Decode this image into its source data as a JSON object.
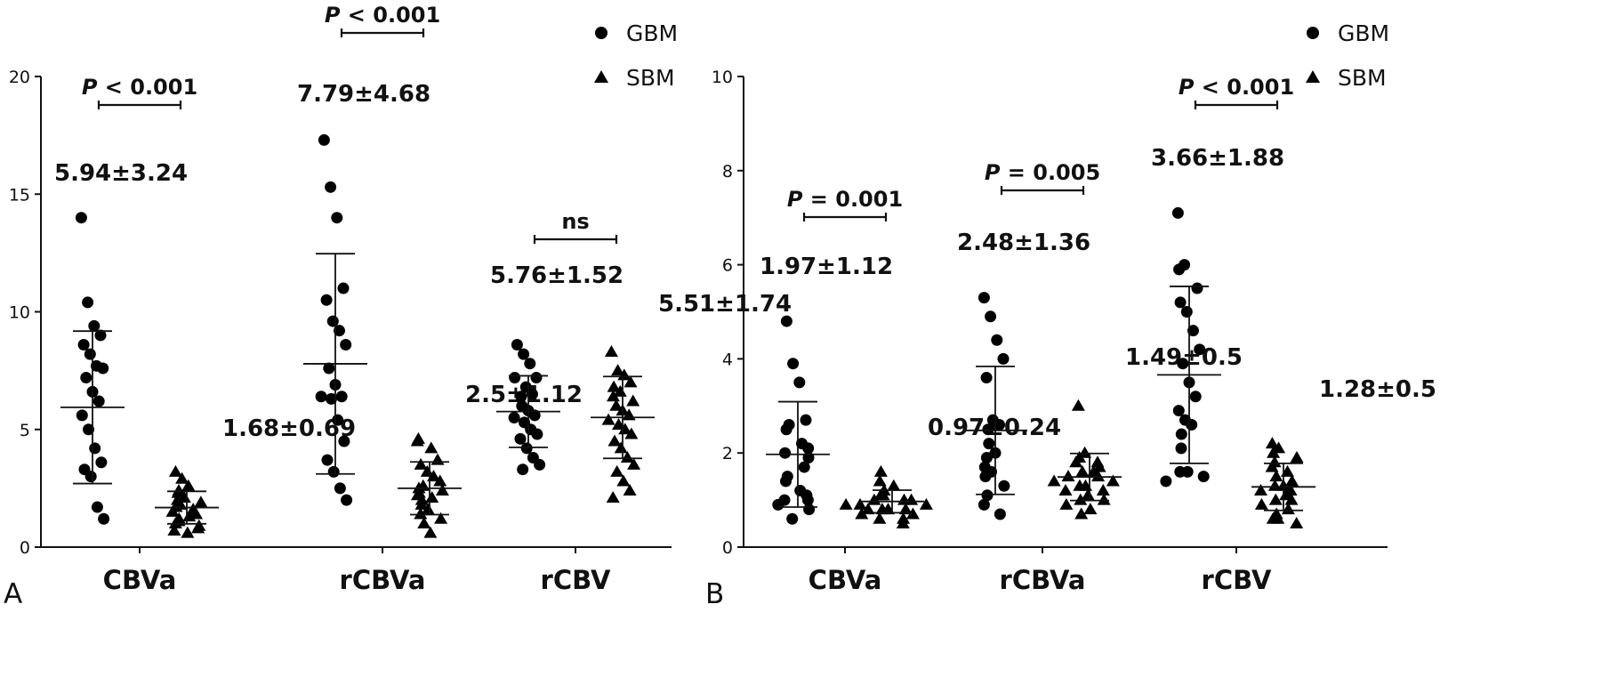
{
  "legend": [
    {
      "label": "GBM",
      "marker": "circle"
    },
    {
      "label": "SBM",
      "marker": "triangle"
    }
  ],
  "chart_data": [
    {
      "type": "scatter",
      "panel_label": "A",
      "categories": [
        "CBVa",
        "rCBVa",
        "rCBV"
      ],
      "ylim": [
        0,
        20
      ],
      "yticks": [
        0,
        5,
        10,
        15,
        20
      ],
      "legend_position": "top-right",
      "groups": [
        {
          "category": "CBVa",
          "bracket_label": "P < 0.001",
          "series": [
            {
              "name": "GBM",
              "label": "5.94±3.24",
              "mean": 5.94,
              "sd": 3.24,
              "points": [
                14.0,
                10.4,
                9.4,
                9.0,
                8.6,
                8.2,
                7.7,
                7.6,
                7.2,
                6.6,
                6.2,
                5.6,
                5.0,
                4.2,
                3.6,
                3.3,
                3.0,
                1.7,
                1.2
              ]
            },
            {
              "name": "SBM",
              "label": "1.68±0.69",
              "mean": 1.68,
              "sd": 0.69,
              "points": [
                3.2,
                2.9,
                2.6,
                2.4,
                2.3,
                2.1,
                2.0,
                1.9,
                1.8,
                1.7,
                1.6,
                1.5,
                1.4,
                1.3,
                1.2,
                1.1,
                1.0,
                0.9,
                0.8,
                0.7,
                0.6
              ]
            }
          ]
        },
        {
          "category": "rCBVa",
          "bracket_label": "P < 0.001",
          "series": [
            {
              "name": "GBM",
              "label": "7.79±4.68",
              "mean": 7.79,
              "sd": 4.68,
              "points": [
                17.3,
                15.3,
                14.0,
                11.0,
                10.5,
                9.6,
                9.2,
                8.6,
                7.6,
                6.9,
                6.4,
                6.4,
                6.3,
                5.4,
                4.5,
                3.7,
                3.2,
                2.5,
                2.0
              ]
            },
            {
              "name": "SBM",
              "label": "2.5±1.12",
              "mean": 2.5,
              "sd": 1.12,
              "points": [
                4.6,
                4.5,
                4.2,
                3.7,
                3.5,
                3.2,
                3.0,
                2.8,
                2.6,
                2.5,
                2.4,
                2.3,
                2.2,
                2.1,
                2.0,
                1.8,
                1.6,
                1.4,
                1.2,
                1.0,
                0.6
              ]
            }
          ]
        },
        {
          "category": "rCBV",
          "bracket_label": "ns",
          "series": [
            {
              "name": "GBM",
              "label": "5.76±1.52",
              "mean": 5.76,
              "sd": 1.52,
              "points": [
                8.6,
                8.2,
                7.8,
                7.2,
                7.2,
                6.8,
                6.5,
                6.4,
                6.0,
                5.8,
                5.6,
                5.5,
                5.3,
                5.0,
                4.8,
                4.6,
                4.2,
                3.8,
                3.5,
                3.3
              ]
            },
            {
              "name": "SBM",
              "label": "5.51±1.74",
              "mean": 5.51,
              "sd": 1.74,
              "points": [
                8.3,
                7.5,
                7.3,
                7.0,
                6.8,
                6.6,
                6.4,
                6.2,
                6.0,
                5.8,
                5.6,
                5.4,
                5.2,
                5.0,
                4.8,
                4.5,
                4.2,
                3.8,
                3.5,
                3.2,
                2.8,
                2.4,
                2.1
              ]
            }
          ]
        }
      ]
    },
    {
      "type": "scatter",
      "panel_label": "B",
      "categories": [
        "CBVa",
        "rCBVa",
        "rCBV"
      ],
      "ylim": [
        0,
        10
      ],
      "yticks": [
        0,
        2,
        4,
        6,
        8,
        10
      ],
      "legend_position": "top-right",
      "groups": [
        {
          "category": "CBVa",
          "bracket_label": "P = 0.001",
          "series": [
            {
              "name": "GBM",
              "label": "1.97±1.12",
              "mean": 1.97,
              "sd": 1.12,
              "points": [
                4.8,
                3.9,
                3.5,
                2.7,
                2.6,
                2.5,
                2.2,
                2.1,
                2.0,
                1.9,
                1.7,
                1.5,
                1.4,
                1.2,
                1.1,
                1.0,
                1.0,
                0.9,
                0.8,
                0.6
              ]
            },
            {
              "name": "SBM",
              "label": "0.97±0.24",
              "mean": 0.97,
              "sd": 0.24,
              "points": [
                1.6,
                1.4,
                1.3,
                1.2,
                1.1,
                1.1,
                1.0,
                1.0,
                1.0,
                0.9,
                0.9,
                0.9,
                0.8,
                0.8,
                0.8,
                0.8,
                0.7,
                0.7,
                0.6,
                0.6,
                0.5
              ]
            }
          ]
        },
        {
          "category": "rCBVa",
          "bracket_label": "P = 0.005",
          "series": [
            {
              "name": "GBM",
              "label": "2.48±1.36",
              "mean": 2.48,
              "sd": 1.36,
              "points": [
                5.3,
                4.9,
                4.4,
                4.0,
                3.6,
                2.7,
                2.6,
                2.5,
                2.2,
                2.0,
                1.9,
                1.7,
                1.6,
                1.5,
                1.3,
                1.1,
                0.9,
                0.7
              ]
            },
            {
              "name": "SBM",
              "label": "1.49±0.5",
              "mean": 1.49,
              "sd": 0.5,
              "points": [
                3.0,
                2.0,
                1.9,
                1.8,
                1.8,
                1.7,
                1.6,
                1.6,
                1.5,
                1.5,
                1.4,
                1.4,
                1.3,
                1.3,
                1.2,
                1.2,
                1.1,
                1.0,
                1.0,
                0.9,
                0.8,
                0.7
              ]
            }
          ]
        },
        {
          "category": "rCBV",
          "bracket_label": "P < 0.001",
          "series": [
            {
              "name": "GBM",
              "label": "3.66±1.88",
              "mean": 3.66,
              "sd": 1.88,
              "points": [
                7.1,
                6.0,
                5.9,
                5.5,
                5.2,
                5.0,
                4.6,
                4.2,
                3.9,
                3.5,
                3.2,
                2.9,
                2.7,
                2.6,
                2.4,
                2.1,
                1.6,
                1.6,
                1.5,
                1.4
              ]
            },
            {
              "name": "SBM",
              "label": "1.28±0.5",
              "mean": 1.28,
              "sd": 0.5,
              "points": [
                2.2,
                2.1,
                2.0,
                1.9,
                1.8,
                1.7,
                1.6,
                1.5,
                1.4,
                1.3,
                1.3,
                1.2,
                1.2,
                1.1,
                1.0,
                1.0,
                0.9,
                0.8,
                0.7,
                0.6,
                0.6,
                0.5
              ]
            }
          ]
        }
      ]
    }
  ]
}
